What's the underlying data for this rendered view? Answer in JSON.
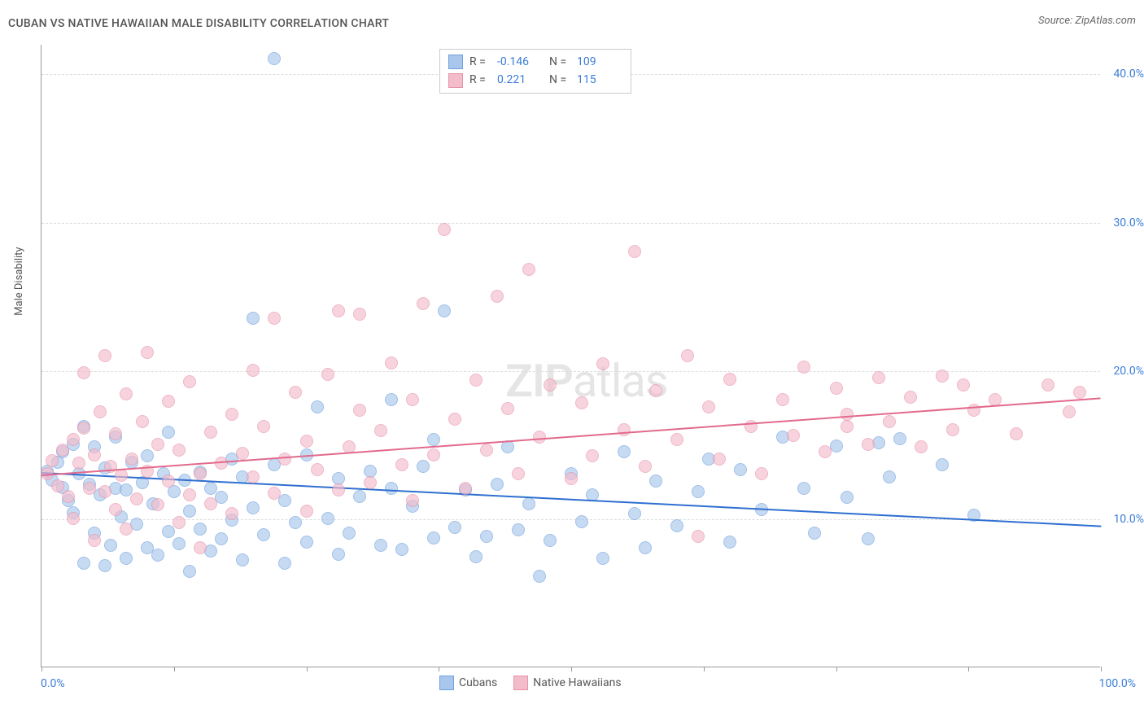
{
  "header": {
    "title": "CUBAN VS NATIVE HAWAIIAN MALE DISABILITY CORRELATION CHART",
    "source": "Source: ZipAtlas.com"
  },
  "watermark": {
    "bold": "ZIP",
    "light": "atlas"
  },
  "chart": {
    "type": "scatter",
    "ylabel": "Male Disability",
    "xlim": [
      0,
      100
    ],
    "ylim": [
      0,
      42
    ],
    "x_ticks_pct": [
      0,
      12.5,
      25,
      37.5,
      50,
      62.5,
      75,
      87.5,
      100
    ],
    "x_start_label": "0.0%",
    "x_end_label": "100.0%",
    "y_gridlines": [
      10,
      20,
      30,
      40
    ],
    "y_tick_labels": [
      "10.0%",
      "20.0%",
      "30.0%",
      "40.0%"
    ],
    "grid_color": "#dddddd",
    "axis_color": "#999999",
    "bg": "#ffffff",
    "marker_radius": 8,
    "series": [
      {
        "name": "Cubans",
        "fill": "#a9c7ec",
        "stroke": "#6fa0de",
        "trend_color": "#2f6fd0",
        "R": "-0.146",
        "N": "109",
        "trend": {
          "x0": 0,
          "y0": 13.2,
          "x1": 100,
          "y1": 9.6
        },
        "points": [
          [
            0.5,
            13.2
          ],
          [
            1,
            12.6
          ],
          [
            1.5,
            13.8
          ],
          [
            2,
            14.5
          ],
          [
            2,
            12.1
          ],
          [
            2.5,
            11.2
          ],
          [
            3,
            15.0
          ],
          [
            3,
            10.4
          ],
          [
            3.5,
            13.0
          ],
          [
            4,
            16.2
          ],
          [
            4,
            7.0
          ],
          [
            4.5,
            12.3
          ],
          [
            5,
            14.8
          ],
          [
            5,
            9.0
          ],
          [
            5.5,
            11.6
          ],
          [
            6,
            13.4
          ],
          [
            6,
            6.8
          ],
          [
            6.5,
            8.2
          ],
          [
            7,
            12.0
          ],
          [
            7,
            15.5
          ],
          [
            7.5,
            10.1
          ],
          [
            8,
            11.9
          ],
          [
            8,
            7.3
          ],
          [
            8.5,
            13.8
          ],
          [
            9,
            9.6
          ],
          [
            9.5,
            12.4
          ],
          [
            10,
            8.0
          ],
          [
            10,
            14.2
          ],
          [
            10.5,
            11.0
          ],
          [
            11,
            7.5
          ],
          [
            11.5,
            13.0
          ],
          [
            12,
            9.1
          ],
          [
            12,
            15.8
          ],
          [
            12.5,
            11.8
          ],
          [
            13,
            8.3
          ],
          [
            13.5,
            12.6
          ],
          [
            14,
            10.5
          ],
          [
            14,
            6.4
          ],
          [
            15,
            13.1
          ],
          [
            15,
            9.3
          ],
          [
            16,
            7.8
          ],
          [
            16,
            12.0
          ],
          [
            17,
            11.4
          ],
          [
            17,
            8.6
          ],
          [
            18,
            14.0
          ],
          [
            18,
            9.9
          ],
          [
            19,
            7.2
          ],
          [
            19,
            12.8
          ],
          [
            20,
            23.5
          ],
          [
            20,
            10.7
          ],
          [
            21,
            8.9
          ],
          [
            22,
            13.6
          ],
          [
            22,
            41.0
          ],
          [
            23,
            11.2
          ],
          [
            23,
            7.0
          ],
          [
            24,
            9.7
          ],
          [
            25,
            14.3
          ],
          [
            25,
            8.4
          ],
          [
            26,
            17.5
          ],
          [
            27,
            10.0
          ],
          [
            28,
            12.7
          ],
          [
            28,
            7.6
          ],
          [
            29,
            9.0
          ],
          [
            30,
            11.5
          ],
          [
            31,
            13.2
          ],
          [
            32,
            8.2
          ],
          [
            33,
            12.0
          ],
          [
            33,
            18.0
          ],
          [
            34,
            7.9
          ],
          [
            35,
            10.8
          ],
          [
            36,
            13.5
          ],
          [
            37,
            8.7
          ],
          [
            37,
            15.3
          ],
          [
            38,
            24.0
          ],
          [
            39,
            9.4
          ],
          [
            40,
            11.9
          ],
          [
            41,
            7.4
          ],
          [
            42,
            8.8
          ],
          [
            43,
            12.3
          ],
          [
            44,
            14.8
          ],
          [
            45,
            9.2
          ],
          [
            46,
            11.0
          ],
          [
            47,
            6.1
          ],
          [
            48,
            8.5
          ],
          [
            50,
            13.0
          ],
          [
            51,
            9.8
          ],
          [
            52,
            11.6
          ],
          [
            53,
            7.3
          ],
          [
            55,
            14.5
          ],
          [
            56,
            10.3
          ],
          [
            57,
            8.0
          ],
          [
            58,
            12.5
          ],
          [
            60,
            9.5
          ],
          [
            62,
            11.8
          ],
          [
            63,
            14.0
          ],
          [
            65,
            8.4
          ],
          [
            66,
            13.3
          ],
          [
            68,
            10.6
          ],
          [
            70,
            15.5
          ],
          [
            72,
            12.0
          ],
          [
            73,
            9.0
          ],
          [
            75,
            14.9
          ],
          [
            76,
            11.4
          ],
          [
            78,
            8.6
          ],
          [
            79,
            15.1
          ],
          [
            80,
            12.8
          ],
          [
            81,
            15.4
          ],
          [
            85,
            13.6
          ],
          [
            88,
            10.2
          ]
        ]
      },
      {
        "name": "Native Hawaiians",
        "fill": "#f3bccb",
        "stroke": "#e892ab",
        "trend_color": "#e26a8d",
        "R": "0.221",
        "N": "115",
        "trend": {
          "x0": 0,
          "y0": 13.0,
          "x1": 100,
          "y1": 18.2
        },
        "points": [
          [
            0.5,
            13.0
          ],
          [
            1,
            13.9
          ],
          [
            1.5,
            12.2
          ],
          [
            2,
            14.6
          ],
          [
            2.5,
            11.5
          ],
          [
            3,
            15.3
          ],
          [
            3,
            10.0
          ],
          [
            3.5,
            13.7
          ],
          [
            4,
            16.1
          ],
          [
            4,
            19.8
          ],
          [
            4.5,
            12.0
          ],
          [
            5,
            14.3
          ],
          [
            5,
            8.5
          ],
          [
            5.5,
            17.2
          ],
          [
            6,
            11.8
          ],
          [
            6,
            21.0
          ],
          [
            6.5,
            13.5
          ],
          [
            7,
            15.7
          ],
          [
            7,
            10.6
          ],
          [
            7.5,
            12.9
          ],
          [
            8,
            18.4
          ],
          [
            8,
            9.3
          ],
          [
            8.5,
            14.0
          ],
          [
            9,
            11.3
          ],
          [
            9.5,
            16.5
          ],
          [
            10,
            13.2
          ],
          [
            10,
            21.2
          ],
          [
            11,
            10.9
          ],
          [
            11,
            15.0
          ],
          [
            12,
            12.5
          ],
          [
            12,
            17.9
          ],
          [
            13,
            9.7
          ],
          [
            13,
            14.6
          ],
          [
            14,
            11.6
          ],
          [
            14,
            19.2
          ],
          [
            15,
            13.0
          ],
          [
            15,
            8.0
          ],
          [
            16,
            15.8
          ],
          [
            16,
            11.0
          ],
          [
            17,
            13.7
          ],
          [
            18,
            17.0
          ],
          [
            18,
            10.3
          ],
          [
            19,
            14.4
          ],
          [
            20,
            12.8
          ],
          [
            20,
            20.0
          ],
          [
            21,
            16.2
          ],
          [
            22,
            11.7
          ],
          [
            22,
            23.5
          ],
          [
            23,
            14.0
          ],
          [
            24,
            18.5
          ],
          [
            25,
            10.5
          ],
          [
            25,
            15.2
          ],
          [
            26,
            13.3
          ],
          [
            27,
            19.7
          ],
          [
            28,
            11.9
          ],
          [
            28,
            24.0
          ],
          [
            29,
            14.8
          ],
          [
            30,
            17.3
          ],
          [
            30,
            23.8
          ],
          [
            31,
            12.4
          ],
          [
            32,
            15.9
          ],
          [
            33,
            20.5
          ],
          [
            34,
            13.6
          ],
          [
            35,
            18.0
          ],
          [
            35,
            11.2
          ],
          [
            36,
            24.5
          ],
          [
            37,
            14.3
          ],
          [
            38,
            29.5
          ],
          [
            39,
            16.7
          ],
          [
            40,
            12.0
          ],
          [
            41,
            19.3
          ],
          [
            42,
            14.6
          ],
          [
            43,
            25.0
          ],
          [
            44,
            17.4
          ],
          [
            45,
            13.0
          ],
          [
            46,
            26.8
          ],
          [
            47,
            15.5
          ],
          [
            48,
            19.0
          ],
          [
            50,
            12.7
          ],
          [
            51,
            17.8
          ],
          [
            52,
            14.2
          ],
          [
            53,
            20.4
          ],
          [
            55,
            16.0
          ],
          [
            56,
            28.0
          ],
          [
            57,
            13.5
          ],
          [
            58,
            18.6
          ],
          [
            60,
            15.3
          ],
          [
            61,
            21.0
          ],
          [
            62,
            8.8
          ],
          [
            63,
            17.5
          ],
          [
            64,
            14.0
          ],
          [
            65,
            19.4
          ],
          [
            67,
            16.2
          ],
          [
            68,
            13.0
          ],
          [
            70,
            18.0
          ],
          [
            71,
            15.6
          ],
          [
            72,
            20.2
          ],
          [
            74,
            14.5
          ],
          [
            75,
            18.8
          ],
          [
            76,
            17.0
          ],
          [
            76,
            16.2
          ],
          [
            78,
            15.0
          ],
          [
            79,
            19.5
          ],
          [
            80,
            16.5
          ],
          [
            82,
            18.2
          ],
          [
            83,
            14.8
          ],
          [
            85,
            19.6
          ],
          [
            86,
            16.0
          ],
          [
            87,
            19.0
          ],
          [
            88,
            17.3
          ],
          [
            90,
            18.0
          ],
          [
            92,
            15.7
          ],
          [
            95,
            19.0
          ],
          [
            97,
            17.2
          ],
          [
            98,
            18.5
          ]
        ]
      }
    ]
  },
  "legend": {
    "top": {
      "rows": [
        {
          "swatch_fill": "#a9c7ec",
          "swatch_stroke": "#6fa0de",
          "R_label": "R =",
          "R": "-0.146",
          "N_label": "N =",
          "N": "109"
        },
        {
          "swatch_fill": "#f3bccb",
          "swatch_stroke": "#e892ab",
          "R_label": "R =",
          "R": "0.221",
          "N_label": "N =",
          "N": "115"
        }
      ]
    },
    "bottom": [
      {
        "swatch_fill": "#a9c7ec",
        "swatch_stroke": "#6fa0de",
        "label": "Cubans"
      },
      {
        "swatch_fill": "#f3bccb",
        "swatch_stroke": "#e892ab",
        "label": "Native Hawaiians"
      }
    ]
  }
}
